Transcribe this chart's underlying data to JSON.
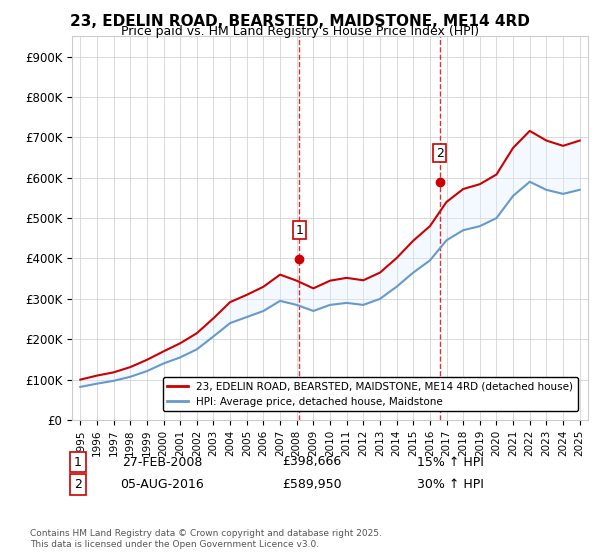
{
  "title": "23, EDELIN ROAD, BEARSTED, MAIDSTONE, ME14 4RD",
  "subtitle": "Price paid vs. HM Land Registry's House Price Index (HPI)",
  "xlabel": "",
  "ylabel": "",
  "ylim": [
    0,
    950000
  ],
  "yticks": [
    0,
    100000,
    200000,
    300000,
    400000,
    500000,
    600000,
    700000,
    800000,
    900000
  ],
  "ytick_labels": [
    "£0",
    "£100K",
    "£200K",
    "£300K",
    "£400K",
    "£500K",
    "£600K",
    "£700K",
    "£800K",
    "£900K"
  ],
  "legend_line1": "23, EDELIN ROAD, BEARSTED, MAIDSTONE, ME14 4RD (detached house)",
  "legend_line2": "HPI: Average price, detached house, Maidstone",
  "sale1_date": "27-FEB-2008",
  "sale1_price": "£398,666",
  "sale1_hpi": "15% ↑ HPI",
  "sale2_date": "05-AUG-2016",
  "sale2_price": "£589,950",
  "sale2_hpi": "30% ↑ HPI",
  "footer": "Contains HM Land Registry data © Crown copyright and database right 2025.\nThis data is licensed under the Open Government Licence v3.0.",
  "line_color_red": "#cc0000",
  "line_color_blue": "#6699cc",
  "shading_color": "#ddeeff",
  "vline_color": "#cc0000",
  "background_color": "#ffffff",
  "grid_color": "#cccccc",
  "sale1_x": 2008.15,
  "sale1_y": 398666,
  "sale2_x": 2016.59,
  "sale2_y": 589950,
  "hpi_years": [
    1995,
    1996,
    1997,
    1998,
    1999,
    2000,
    2001,
    2002,
    2003,
    2004,
    2005,
    2006,
    2007,
    2008,
    2009,
    2010,
    2011,
    2012,
    2013,
    2014,
    2015,
    2016,
    2017,
    2018,
    2019,
    2020,
    2021,
    2022,
    2023,
    2024,
    2025
  ],
  "hpi_values": [
    82000,
    90000,
    97000,
    107000,
    121000,
    140000,
    155000,
    175000,
    207000,
    240000,
    255000,
    270000,
    295000,
    285000,
    270000,
    285000,
    290000,
    285000,
    300000,
    330000,
    365000,
    395000,
    445000,
    470000,
    480000,
    500000,
    555000,
    590000,
    570000,
    560000,
    570000
  ],
  "price_years": [
    1995,
    1996,
    1997,
    1998,
    1999,
    2000,
    2001,
    2002,
    2003,
    2004,
    2005,
    2006,
    2007,
    2008,
    2009,
    2010,
    2011,
    2012,
    2013,
    2014,
    2015,
    2016,
    2017,
    2018,
    2019,
    2020,
    2021,
    2022,
    2023,
    2024,
    2025
  ],
  "price_values": [
    100000,
    110000,
    118000,
    131000,
    149000,
    170000,
    190000,
    215000,
    252000,
    292000,
    310000,
    330000,
    360000,
    345000,
    326000,
    345000,
    352000,
    346000,
    365000,
    401000,
    444000,
    480000,
    540000,
    572000,
    584000,
    608000,
    674000,
    716000,
    692000,
    679000,
    692000
  ],
  "xlim_min": 1994.5,
  "xlim_max": 2025.5
}
